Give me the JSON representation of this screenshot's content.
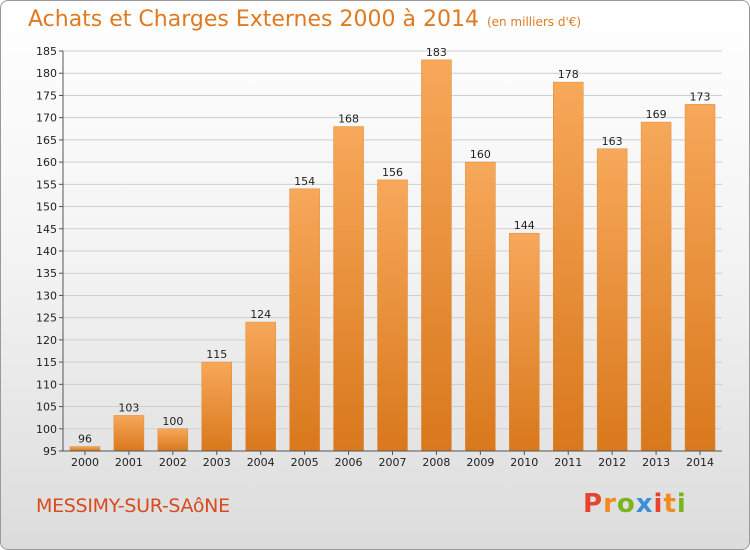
{
  "header": {
    "title": "Achats et Charges Externes 2000 à 2014",
    "subtitle": "(en milliers d'€)"
  },
  "footer": {
    "commune": "MESSIMY-SUR-SAôNE",
    "logo_letters": [
      "P",
      "r",
      "o",
      "x",
      "i",
      "t",
      "i"
    ],
    "logo_colors": [
      "#e8432e",
      "#f28c1e",
      "#7ab51d",
      "#3d8fd6",
      "#e8432e",
      "#f28c1e",
      "#7ab51d"
    ]
  },
  "colors": {
    "bar_top": "#f7a85a",
    "bar_bottom": "#d9781c",
    "title": "#e07a20",
    "commune": "#d94a1e"
  },
  "chart_data": {
    "type": "bar",
    "categories": [
      "2000",
      "2001",
      "2002",
      "2003",
      "2004",
      "2005",
      "2006",
      "2007",
      "2008",
      "2009",
      "2010",
      "2011",
      "2012",
      "2013",
      "2014"
    ],
    "values": [
      96,
      103,
      100,
      115,
      124,
      154,
      168,
      156,
      183,
      160,
      144,
      178,
      163,
      169,
      173
    ],
    "title": "Achats et Charges Externes 2000 à 2014",
    "ylim": [
      95,
      185
    ],
    "yticks": [
      95,
      100,
      105,
      110,
      115,
      120,
      125,
      130,
      135,
      140,
      145,
      150,
      155,
      160,
      165,
      170,
      175,
      180,
      185
    ],
    "grid": true
  }
}
